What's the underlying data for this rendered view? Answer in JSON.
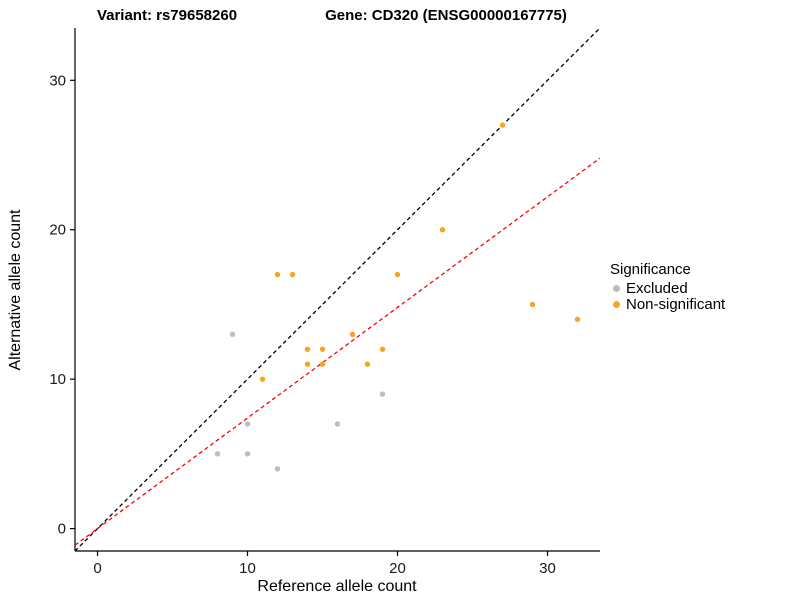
{
  "header": {
    "variant_title": "Variant: rs79658260",
    "gene_title": "Gene: CD320 (ENSG00000167775)"
  },
  "chart_data": {
    "type": "scatter",
    "title": "",
    "xlabel": "Reference allele count",
    "ylabel": "Alternative allele count",
    "xlim": [
      -1.5,
      33.5
    ],
    "ylim": [
      -1.5,
      33.5
    ],
    "xticks": [
      0,
      10,
      20,
      30
    ],
    "yticks": [
      0,
      10,
      20,
      30
    ],
    "grid": false,
    "legend": {
      "title": "Significance",
      "position": "right"
    },
    "series": [
      {
        "name": "Excluded",
        "color": "#bdbdbd",
        "points": [
          [
            8,
            5
          ],
          [
            9,
            13
          ],
          [
            10,
            5
          ],
          [
            10,
            7
          ],
          [
            12,
            4
          ],
          [
            16,
            7
          ],
          [
            19,
            9
          ]
        ]
      },
      {
        "name": "Non-significant",
        "color": "#f5a524",
        "points": [
          [
            11,
            10
          ],
          [
            12,
            17
          ],
          [
            13,
            17
          ],
          [
            14,
            11
          ],
          [
            14,
            12
          ],
          [
            15,
            11
          ],
          [
            15,
            12
          ],
          [
            17,
            13
          ],
          [
            18,
            11
          ],
          [
            19,
            12
          ],
          [
            20,
            17
          ],
          [
            23,
            20
          ],
          [
            27,
            27
          ],
          [
            29,
            15
          ],
          [
            32,
            14
          ]
        ]
      }
    ],
    "lines": [
      {
        "name": "identity-line",
        "slope": 1,
        "intercept": 0,
        "color": "#000000",
        "dash": "4,3"
      },
      {
        "name": "ratio-line",
        "slope": 0.74,
        "intercept": 0,
        "color": "#ff0000",
        "dash": "4,3"
      }
    ]
  }
}
